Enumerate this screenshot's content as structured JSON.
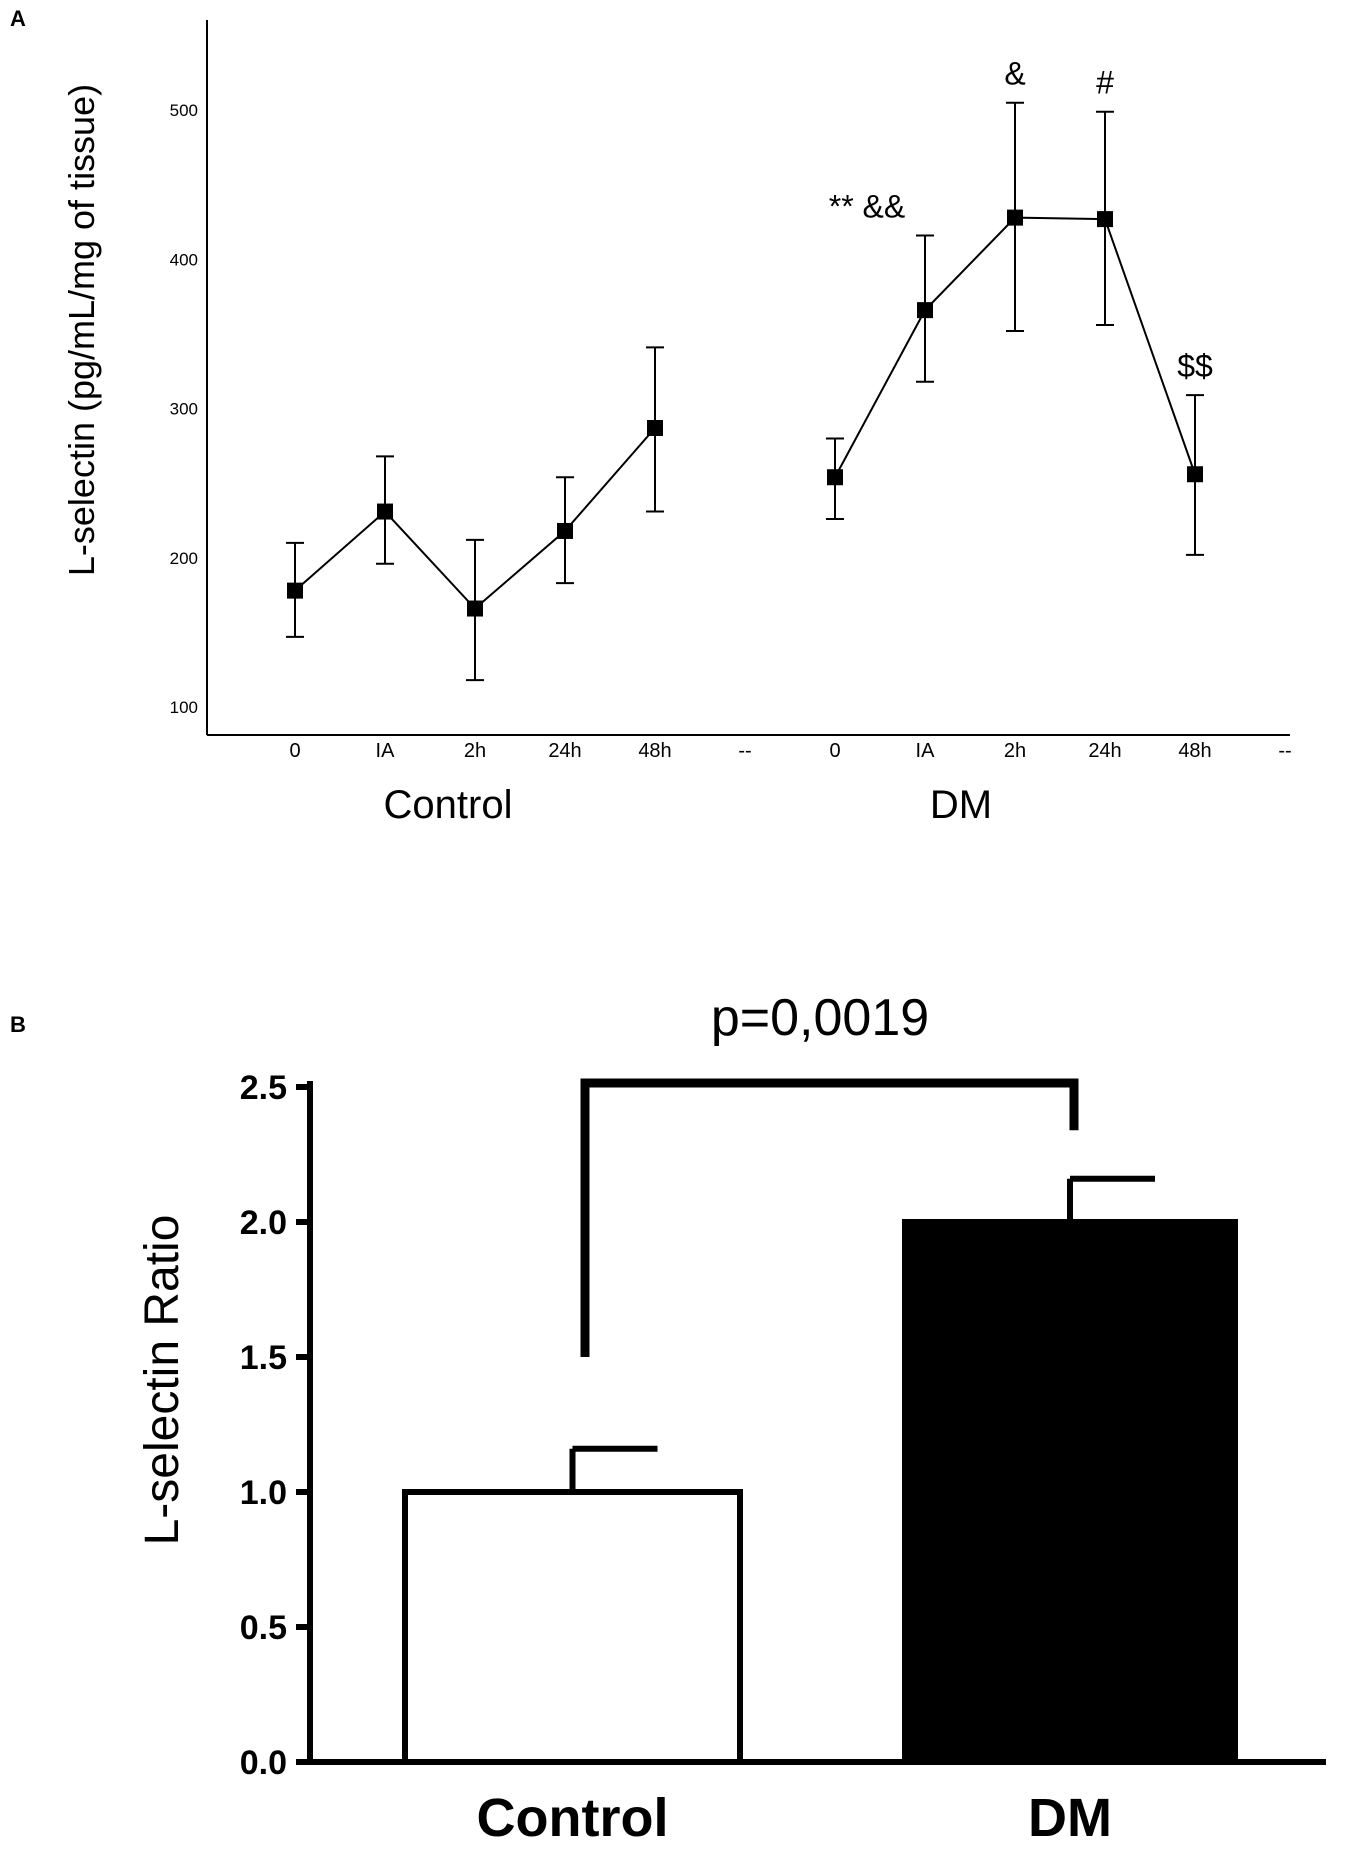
{
  "chart_data": [
    {
      "panel": "A",
      "type": "line",
      "ylabel": "L-selectin (pg/mL/mg of tissue)",
      "yticks": [
        100,
        200,
        300,
        400,
        500
      ],
      "ylim": [
        70,
        545
      ],
      "xticks": [
        "0",
        "IA",
        "2h",
        "24h",
        "48h",
        "--",
        "0",
        "IA",
        "2h",
        "24h",
        "48h",
        "--"
      ],
      "group_labels": [
        "Control",
        "DM"
      ],
      "series": [
        {
          "group": "Control",
          "x": [
            "0",
            "IA",
            "2h",
            "24h",
            "48h"
          ],
          "values": [
            178,
            231,
            166,
            218,
            287
          ],
          "err_upper": [
            210,
            268,
            212,
            254,
            341
          ],
          "err_lower": [
            147,
            196,
            118,
            183,
            231
          ],
          "annotations": [
            "",
            "",
            "",
            "",
            ""
          ]
        },
        {
          "group": "DM",
          "x": [
            "0",
            "IA",
            "2h",
            "24h",
            "48h"
          ],
          "values": [
            254,
            366,
            428,
            427,
            256
          ],
          "err_upper": [
            280,
            416,
            505,
            499,
            309
          ],
          "err_lower": [
            226,
            318,
            352,
            356,
            202
          ],
          "annotations": [
            "",
            "** &&",
            "&",
            "#",
            "$$"
          ]
        }
      ],
      "grid": false
    },
    {
      "panel": "B",
      "type": "bar",
      "ylabel": "L-selectin Ratio",
      "categories": [
        "Control",
        "DM"
      ],
      "values": [
        1.0,
        2.0
      ],
      "err_upper": [
        1.16,
        2.16
      ],
      "bar_colors": [
        "#ffffff",
        "#000000"
      ],
      "yticks": [
        "0.0",
        "0.5",
        "1.0",
        "1.5",
        "2.0",
        "2.5"
      ],
      "ylim": [
        0,
        2.5
      ],
      "significance": "p=0,0019",
      "grid": false
    }
  ],
  "panel_labels": [
    "A",
    "B"
  ]
}
